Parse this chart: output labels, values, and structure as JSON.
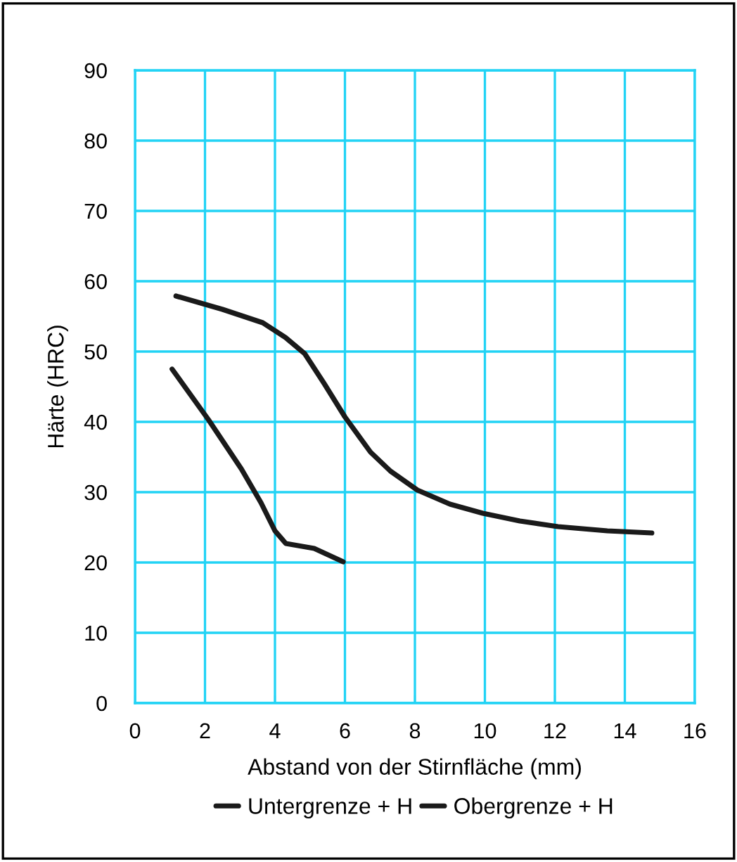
{
  "chart_data": {
    "type": "line",
    "xlabel": "Abstand von der Stirnfläche (mm)",
    "ylabel": "Härte (HRC)",
    "xlim": [
      0,
      16
    ],
    "xticks": [
      0,
      2,
      4,
      6,
      8,
      10,
      12,
      14,
      16
    ],
    "ylim": [
      0,
      90
    ],
    "yticks": [
      0,
      10,
      20,
      30,
      40,
      50,
      60,
      70,
      80,
      90
    ],
    "grid": true,
    "legend": "bottom",
    "marker": "none",
    "line_style": "solid",
    "series": [
      {
        "name": "Untergrenze + H",
        "color": "#1a1a1a",
        "x": [
          1.06,
          2.1,
          3.04,
          3.6,
          4.0,
          4.31,
          5.12,
          5.95
        ],
        "values": [
          47.5,
          40.3,
          33.3,
          28.5,
          24.5,
          22.7,
          22.0,
          20.1
        ]
      },
      {
        "name": "Obergrenze + H",
        "color": "#1a1a1a",
        "x": [
          1.17,
          2.5,
          3.65,
          4.3,
          4.85,
          5.4,
          6.0,
          6.73,
          7.3,
          8.07,
          9.0,
          9.94,
          11.0,
          12.09,
          13.5,
          14.77
        ],
        "values": [
          57.9,
          56.0,
          54.1,
          52.0,
          49.7,
          45.5,
          40.7,
          35.7,
          33.0,
          30.3,
          28.3,
          27.0,
          25.9,
          25.1,
          24.5,
          24.2
        ]
      }
    ]
  }
}
